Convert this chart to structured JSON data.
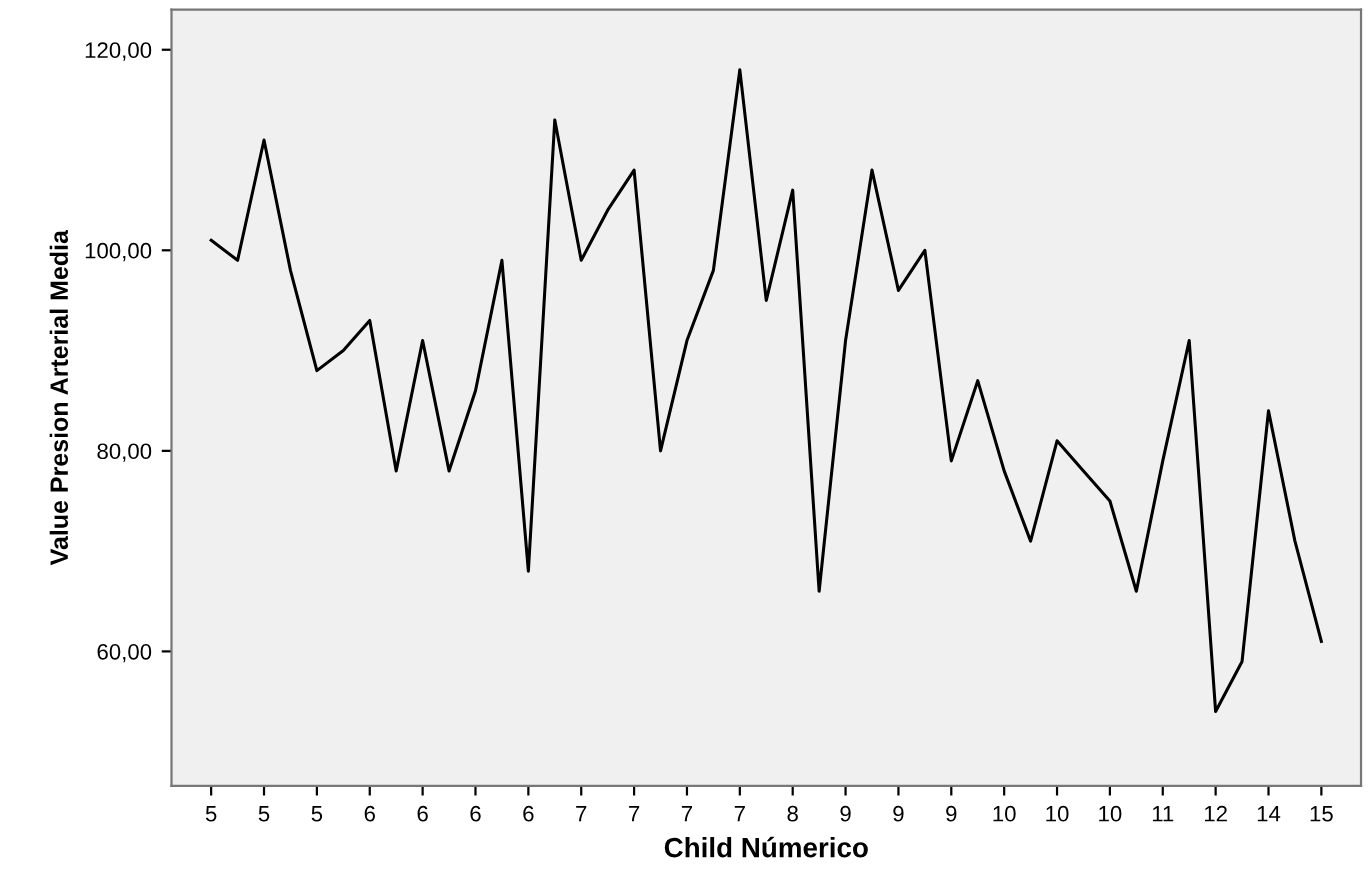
{
  "chart_data": {
    "type": "line",
    "xlabel": "Child Númerico",
    "ylabel": "Value Presion Arterial Media",
    "categories": [
      "5",
      null,
      "5",
      null,
      "5",
      null,
      "6",
      null,
      "6",
      null,
      "6",
      null,
      "6",
      null,
      "7",
      null,
      "7",
      null,
      "7",
      null,
      "7",
      null,
      "8",
      null,
      "9",
      null,
      "9",
      null,
      "9",
      null,
      "10",
      null,
      "10",
      null,
      "10",
      null,
      "11",
      null,
      "12",
      null,
      "14",
      null,
      "15"
    ],
    "series": [
      {
        "color": "#000000",
        "values": [
          101,
          99,
          111,
          98,
          88,
          90,
          93,
          78,
          91,
          78,
          86,
          99,
          68,
          113,
          99,
          104,
          108,
          80,
          91,
          98,
          118,
          95,
          106,
          66,
          91,
          108,
          96,
          100,
          79,
          87,
          78,
          71,
          81,
          78,
          75,
          66,
          79,
          91,
          54,
          59,
          84,
          71,
          61
        ]
      }
    ],
    "ylim": [
      46.6,
      124
    ],
    "yticks": [
      {
        "value": 60,
        "label": "60,00"
      },
      {
        "value": 80,
        "label": "80,00"
      },
      {
        "value": 100,
        "label": "100,00"
      },
      {
        "value": 120,
        "label": "120,00"
      }
    ],
    "grid": false,
    "legend": false,
    "marker": "none",
    "line_style": "solid"
  }
}
